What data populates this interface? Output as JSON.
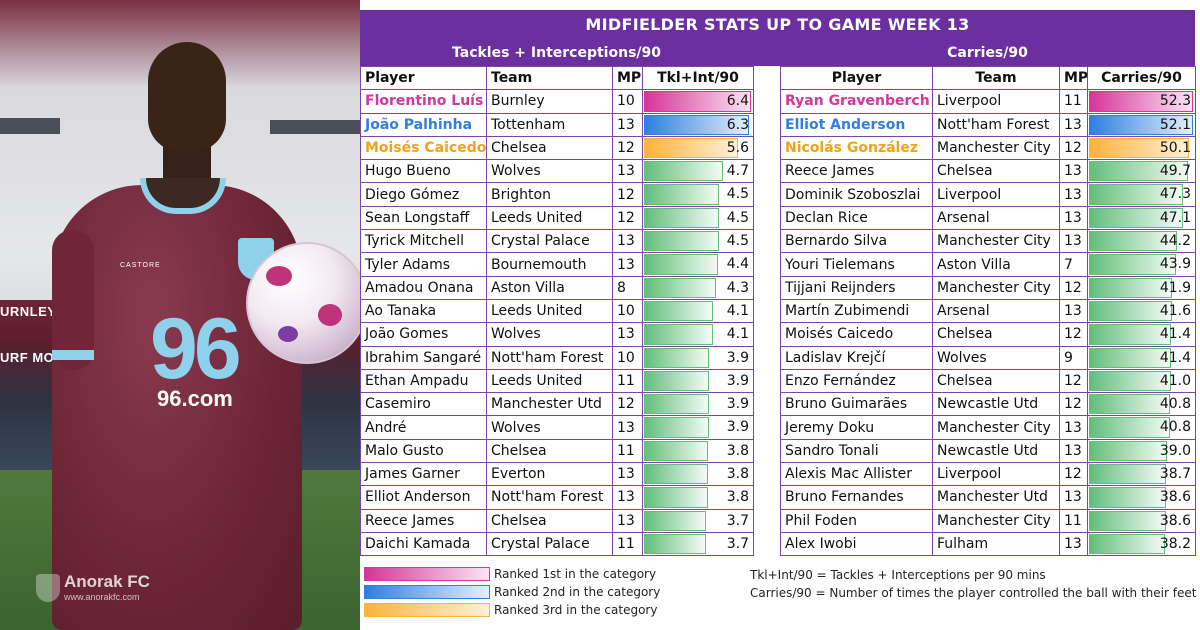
{
  "title": "MIDFIELDER STATS UP TO GAME WEEK 13",
  "watermark": {
    "title": "Anorak FC",
    "url": "www.anorakfc.com"
  },
  "photo_text": {
    "stadium_sign": "URNLEY FC",
    "stadium_sign2": "URF MOOR",
    "shirt_number": "96",
    "shirt_sponsor": "96.com",
    "kit_brand": "CASTORE"
  },
  "colors": {
    "header": "#6b2fa0",
    "rank1": "#d6359a",
    "rank2": "#2e7fe0",
    "rank3": "#f0a21a",
    "bar": "#63be7b"
  },
  "left_section": {
    "title": "Tackles + Interceptions/90",
    "columns": [
      "Player",
      "Team",
      "MP",
      "Tkl+Int/90"
    ],
    "max": 6.4,
    "rows": [
      {
        "player": "Florentino Luís",
        "team": "Burnley",
        "mp": "10",
        "value": "6.4",
        "rank": 1
      },
      {
        "player": "João Palhinha",
        "team": "Tottenham",
        "mp": "13",
        "value": "6.3",
        "rank": 2
      },
      {
        "player": "Moisés Caicedo",
        "team": "Chelsea",
        "mp": "12",
        "value": "5.6",
        "rank": 3
      },
      {
        "player": "Hugo Bueno",
        "team": "Wolves",
        "mp": "13",
        "value": "4.7",
        "rank": 0
      },
      {
        "player": "Diego Gómez",
        "team": "Brighton",
        "mp": "12",
        "value": "4.5",
        "rank": 0
      },
      {
        "player": "Sean Longstaff",
        "team": "Leeds United",
        "mp": "12",
        "value": "4.5",
        "rank": 0
      },
      {
        "player": "Tyrick Mitchell",
        "team": "Crystal Palace",
        "mp": "13",
        "value": "4.5",
        "rank": 0
      },
      {
        "player": "Tyler Adams",
        "team": "Bournemouth",
        "mp": "13",
        "value": "4.4",
        "rank": 0
      },
      {
        "player": "Amadou Onana",
        "team": "Aston Villa",
        "mp": "8",
        "value": "4.3",
        "rank": 0
      },
      {
        "player": "Ao Tanaka",
        "team": "Leeds United",
        "mp": "10",
        "value": "4.1",
        "rank": 0
      },
      {
        "player": "João Gomes",
        "team": "Wolves",
        "mp": "13",
        "value": "4.1",
        "rank": 0
      },
      {
        "player": "Ibrahim Sangaré",
        "team": "Nott'ham Forest",
        "mp": "10",
        "value": "3.9",
        "rank": 0
      },
      {
        "player": "Ethan Ampadu",
        "team": "Leeds United",
        "mp": "11",
        "value": "3.9",
        "rank": 0
      },
      {
        "player": "Casemiro",
        "team": "Manchester Utd",
        "mp": "12",
        "value": "3.9",
        "rank": 0
      },
      {
        "player": "André",
        "team": "Wolves",
        "mp": "13",
        "value": "3.9",
        "rank": 0
      },
      {
        "player": "Malo Gusto",
        "team": "Chelsea",
        "mp": "11",
        "value": "3.8",
        "rank": 0
      },
      {
        "player": "James Garner",
        "team": "Everton",
        "mp": "13",
        "value": "3.8",
        "rank": 0
      },
      {
        "player": "Elliot Anderson",
        "team": "Nott'ham Forest",
        "mp": "13",
        "value": "3.8",
        "rank": 0
      },
      {
        "player": "Reece James",
        "team": "Chelsea",
        "mp": "13",
        "value": "3.7",
        "rank": 0
      },
      {
        "player": "Daichi Kamada",
        "team": "Crystal Palace",
        "mp": "11",
        "value": "3.7",
        "rank": 0
      }
    ]
  },
  "right_section": {
    "title": "Carries/90",
    "columns": [
      "Player",
      "Team",
      "MP",
      "Carries/90"
    ],
    "max": 52.3,
    "rows": [
      {
        "player": "Ryan Gravenberch",
        "team": "Liverpool",
        "mp": "11",
        "value": "52.3",
        "rank": 1
      },
      {
        "player": "Elliot Anderson",
        "team": "Nott'ham Forest",
        "mp": "13",
        "value": "52.1",
        "rank": 2
      },
      {
        "player": "Nicolás González",
        "team": "Manchester City",
        "mp": "12",
        "value": "50.1",
        "rank": 3
      },
      {
        "player": "Reece James",
        "team": "Chelsea",
        "mp": "13",
        "value": "49.7",
        "rank": 0
      },
      {
        "player": "Dominik Szoboszlai",
        "team": "Liverpool",
        "mp": "13",
        "value": "47.3",
        "rank": 0
      },
      {
        "player": "Declan Rice",
        "team": "Arsenal",
        "mp": "13",
        "value": "47.1",
        "rank": 0
      },
      {
        "player": "Bernardo Silva",
        "team": "Manchester City",
        "mp": "13",
        "value": "44.2",
        "rank": 0
      },
      {
        "player": "Youri Tielemans",
        "team": "Aston Villa",
        "mp": "7",
        "value": "43.9",
        "rank": 0
      },
      {
        "player": "Tijjani Reijnders",
        "team": "Manchester City",
        "mp": "12",
        "value": "41.9",
        "rank": 0
      },
      {
        "player": "Martín Zubimendi",
        "team": "Arsenal",
        "mp": "13",
        "value": "41.6",
        "rank": 0
      },
      {
        "player": "Moisés Caicedo",
        "team": "Chelsea",
        "mp": "12",
        "value": "41.4",
        "rank": 0
      },
      {
        "player": "Ladislav Krejčí",
        "team": "Wolves",
        "mp": "9",
        "value": "41.4",
        "rank": 0
      },
      {
        "player": "Enzo Fernández",
        "team": "Chelsea",
        "mp": "12",
        "value": "41.0",
        "rank": 0
      },
      {
        "player": "Bruno Guimarães",
        "team": "Newcastle Utd",
        "mp": "12",
        "value": "40.8",
        "rank": 0
      },
      {
        "player": "Jeremy Doku",
        "team": "Manchester City",
        "mp": "13",
        "value": "40.8",
        "rank": 0
      },
      {
        "player": "Sandro Tonali",
        "team": "Newcastle Utd",
        "mp": "13",
        "value": "39.0",
        "rank": 0
      },
      {
        "player": "Alexis Mac Allister",
        "team": "Liverpool",
        "mp": "12",
        "value": "38.7",
        "rank": 0
      },
      {
        "player": "Bruno Fernandes",
        "team": "Manchester Utd",
        "mp": "13",
        "value": "38.6",
        "rank": 0
      },
      {
        "player": "Phil Foden",
        "team": "Manchester City",
        "mp": "11",
        "value": "38.6",
        "rank": 0
      },
      {
        "player": "Alex Iwobi",
        "team": "Fulham",
        "mp": "13",
        "value": "38.2",
        "rank": 0
      }
    ]
  },
  "legend": [
    {
      "label": "Ranked 1st in the category",
      "style": "pink"
    },
    {
      "label": "Ranked 2nd in the category",
      "style": "blue"
    },
    {
      "label": "Ranked 3rd in the category",
      "style": "orange"
    }
  ],
  "notes": [
    "Tkl+Int/90 = Tackles + Interceptions per 90 mins",
    "Carries/90 = Number of times the player controlled the ball with their feet"
  ]
}
